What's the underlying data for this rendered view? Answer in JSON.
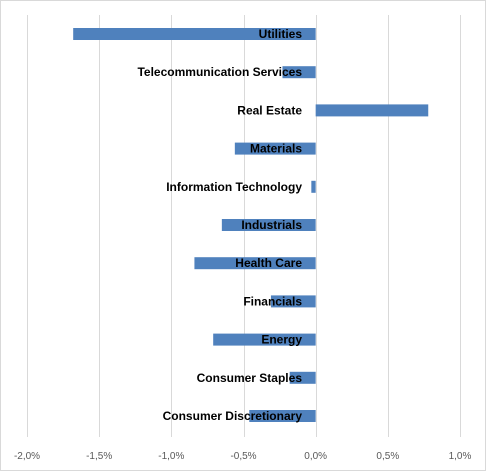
{
  "chart_data": {
    "type": "bar",
    "orientation": "horizontal",
    "title": "",
    "xlabel": "",
    "ylabel": "",
    "categories": [
      "Utilities",
      "Telecommunication Services",
      "Real Estate",
      "Materials",
      "Information Technology",
      "Industrials",
      "Health Care",
      "Financials",
      "Energy",
      "Consumer Staples",
      "Consumer Discretionary"
    ],
    "values": [
      -1.68,
      -0.23,
      0.78,
      -0.56,
      -0.03,
      -0.65,
      -0.84,
      -0.31,
      -0.71,
      -0.18,
      -0.46
    ],
    "xlim": [
      -2.0,
      1.0
    ],
    "xticks": [
      -2.0,
      -1.5,
      -1.0,
      -0.5,
      0.0,
      0.5,
      1.0
    ],
    "xtick_labels": [
      "-2,0%",
      "-1,5%",
      "-1,0%",
      "-0,5%",
      "0,0%",
      "0,5%",
      "1,0%"
    ],
    "grid": true,
    "legend": "none",
    "colors": {
      "bar": "#4f81bd",
      "grid": "#d9d9d9",
      "label": "#000000",
      "tick": "#595959"
    }
  }
}
